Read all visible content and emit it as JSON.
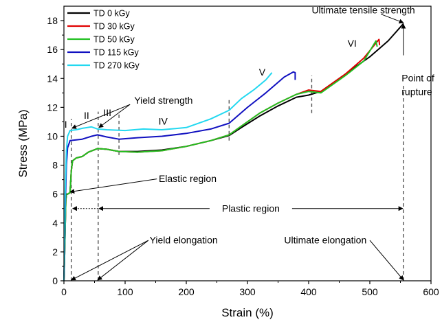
{
  "chart_data": {
    "type": "line",
    "title": "",
    "xlabel": "Strain (%)",
    "ylabel": "Stress (MPa)",
    "xlim": [
      0,
      600
    ],
    "ylim": [
      0,
      19
    ],
    "xticks": [
      0,
      100,
      200,
      300,
      400,
      500,
      600
    ],
    "yticks": [
      0,
      2,
      4,
      6,
      8,
      10,
      12,
      14,
      16,
      18
    ],
    "legend_position": "top-left",
    "grid": false,
    "series": [
      {
        "name": "TD 0 kGy",
        "color": "#000000",
        "points": [
          [
            0,
            0
          ],
          [
            1,
            1.5
          ],
          [
            2,
            3.5
          ],
          [
            3,
            5.5
          ],
          [
            4,
            6.0
          ],
          [
            6,
            6.0
          ],
          [
            10,
            6.1
          ],
          [
            12,
            7.6
          ],
          [
            14,
            8.3
          ],
          [
            20,
            8.5
          ],
          [
            30,
            8.6
          ],
          [
            40,
            8.9
          ],
          [
            55,
            9.15
          ],
          [
            70,
            9.1
          ],
          [
            90,
            8.95
          ],
          [
            120,
            8.95
          ],
          [
            160,
            9.05
          ],
          [
            200,
            9.3
          ],
          [
            240,
            9.7
          ],
          [
            270,
            10.05
          ],
          [
            290,
            10.6
          ],
          [
            320,
            11.4
          ],
          [
            350,
            12.1
          ],
          [
            380,
            12.7
          ],
          [
            400,
            12.85
          ],
          [
            420,
            13.1
          ],
          [
            460,
            14.3
          ],
          [
            500,
            15.5
          ],
          [
            530,
            16.6
          ],
          [
            555,
            17.8
          ]
        ]
      },
      {
        "name": "TD 30 kGy",
        "color": "#e00000",
        "points": [
          [
            0,
            0
          ],
          [
            1,
            1.5
          ],
          [
            2,
            3.5
          ],
          [
            3,
            5.5
          ],
          [
            4,
            6.0
          ],
          [
            6,
            6.0
          ],
          [
            10,
            6.1
          ],
          [
            12,
            7.6
          ],
          [
            14,
            8.3
          ],
          [
            20,
            8.5
          ],
          [
            30,
            8.6
          ],
          [
            40,
            8.9
          ],
          [
            55,
            9.15
          ],
          [
            70,
            9.1
          ],
          [
            90,
            8.95
          ],
          [
            120,
            8.9
          ],
          [
            160,
            9.0
          ],
          [
            200,
            9.3
          ],
          [
            240,
            9.7
          ],
          [
            270,
            10.1
          ],
          [
            290,
            10.7
          ],
          [
            320,
            11.6
          ],
          [
            350,
            12.3
          ],
          [
            380,
            12.9
          ],
          [
            400,
            13.2
          ],
          [
            420,
            13.1
          ],
          [
            460,
            14.3
          ],
          [
            490,
            15.4
          ],
          [
            515,
            16.7
          ],
          [
            516,
            16.3
          ]
        ]
      },
      {
        "name": "TD 50 kGy",
        "color": "#22c022",
        "points": [
          [
            0,
            0
          ],
          [
            1,
            1.5
          ],
          [
            2,
            3.5
          ],
          [
            3,
            5.5
          ],
          [
            4,
            6.0
          ],
          [
            6,
            6.0
          ],
          [
            10,
            6.1
          ],
          [
            12,
            7.6
          ],
          [
            14,
            8.3
          ],
          [
            20,
            8.5
          ],
          [
            30,
            8.6
          ],
          [
            40,
            8.9
          ],
          [
            55,
            9.15
          ],
          [
            70,
            9.1
          ],
          [
            90,
            8.95
          ],
          [
            120,
            8.9
          ],
          [
            160,
            9.0
          ],
          [
            200,
            9.3
          ],
          [
            240,
            9.7
          ],
          [
            270,
            10.1
          ],
          [
            290,
            10.7
          ],
          [
            320,
            11.6
          ],
          [
            350,
            12.3
          ],
          [
            380,
            12.9
          ],
          [
            400,
            13.1
          ],
          [
            420,
            13.0
          ],
          [
            460,
            14.2
          ],
          [
            490,
            15.2
          ],
          [
            510,
            16.6
          ],
          [
            512,
            16.2
          ]
        ]
      },
      {
        "name": "TD 115 kGy",
        "color": "#1010c0",
        "points": [
          [
            0,
            0
          ],
          [
            1,
            2.0
          ],
          [
            2,
            5.0
          ],
          [
            4,
            8.0
          ],
          [
            6,
            9.2
          ],
          [
            10,
            9.7
          ],
          [
            20,
            9.75
          ],
          [
            30,
            9.8
          ],
          [
            45,
            10.0
          ],
          [
            55,
            10.1
          ],
          [
            70,
            9.95
          ],
          [
            90,
            9.8
          ],
          [
            120,
            9.9
          ],
          [
            160,
            10.0
          ],
          [
            200,
            10.2
          ],
          [
            240,
            10.5
          ],
          [
            270,
            10.9
          ],
          [
            300,
            12.0
          ],
          [
            330,
            13.0
          ],
          [
            360,
            14.1
          ],
          [
            375,
            14.45
          ],
          [
            378,
            14.4
          ],
          [
            378,
            13.9
          ]
        ]
      },
      {
        "name": "TD 270 kGy",
        "color": "#22d8f0",
        "points": [
          [
            0,
            0
          ],
          [
            1,
            2.5
          ],
          [
            2,
            6.0
          ],
          [
            4,
            9.0
          ],
          [
            6,
            10.0
          ],
          [
            10,
            10.4
          ],
          [
            20,
            10.45
          ],
          [
            30,
            10.55
          ],
          [
            45,
            10.65
          ],
          [
            55,
            10.5
          ],
          [
            70,
            10.45
          ],
          [
            100,
            10.4
          ],
          [
            130,
            10.5
          ],
          [
            160,
            10.45
          ],
          [
            200,
            10.6
          ],
          [
            240,
            11.2
          ],
          [
            270,
            11.8
          ],
          [
            290,
            12.6
          ],
          [
            310,
            13.2
          ],
          [
            330,
            13.9
          ],
          [
            340,
            14.4
          ]
        ]
      }
    ],
    "region_labels": [
      {
        "label": "I",
        "x": 3,
        "y": 10.6
      },
      {
        "label": "II",
        "x": 37,
        "y": 11.2
      },
      {
        "label": "III",
        "x": 71,
        "y": 11.4
      },
      {
        "label": "IV",
        "x": 162,
        "y": 10.8
      },
      {
        "label": "V",
        "x": 324,
        "y": 14.2
      },
      {
        "label": "VI",
        "x": 471,
        "y": 16.2
      }
    ],
    "dashed_lines": [
      {
        "x": 12,
        "y_from": 0,
        "y_to": 11.2
      },
      {
        "x": 56,
        "y_from": 0,
        "y_to": 11.7
      },
      {
        "x": 90,
        "y_from": 8.7,
        "y_to": 11.7
      },
      {
        "x": 270,
        "y_from": 9.7,
        "y_to": 12.6
      },
      {
        "x": 405,
        "y_from": 11.6,
        "y_to": 14.2
      },
      {
        "x": 555,
        "y_from": 0,
        "y_to": 13.5
      }
    ],
    "annotations": [
      {
        "text": "Ultimate tensile strength",
        "text_x": 405,
        "text_y": 18.5,
        "arrows": [
          {
            "from": [
              518,
              18.45
            ],
            "to": [
              555,
              17.85
            ]
          }
        ]
      },
      {
        "text": "Point of",
        "text_x": 552,
        "text_y": 13.8,
        "arrows": [
          {
            "from": [
              555,
              15.6
            ],
            "to": [
              555,
              17.75
            ]
          }
        ]
      },
      {
        "text": "rupture",
        "text_x": 552,
        "text_y": 12.85,
        "arrows": []
      },
      {
        "text": "Yield strength",
        "text_x": 115,
        "text_y": 12.25,
        "arrows": [
          {
            "from": [
              108,
              12.2
            ],
            "to": [
              13,
              10.55
            ]
          },
          {
            "from": [
              108,
              12.2
            ],
            "to": [
              57,
              10.6
            ]
          }
        ]
      },
      {
        "text": "Elastic region",
        "text_x": 155,
        "text_y": 6.85,
        "arrows": [
          {
            "from": [
              152,
              7.05
            ],
            "to": [
              10,
              6.15
            ]
          }
        ]
      },
      {
        "text": "Yield elongation",
        "text_x": 140,
        "text_y": 2.6,
        "arrows": [
          {
            "from": [
              138,
              2.8
            ],
            "to": [
              12,
              0.05
            ]
          },
          {
            "from": [
              138,
              2.8
            ],
            "to": [
              55,
              0.05
            ]
          }
        ]
      },
      {
        "text": "Ultimate elongation",
        "text_x": 360,
        "text_y": 2.6,
        "arrows": [
          {
            "from": [
              500,
              2.8
            ],
            "to": [
              555,
              0.05
            ]
          }
        ]
      }
    ],
    "plastic_region": {
      "text": "Plastic region",
      "y": 5.0,
      "x_start": 12,
      "x_split": 56,
      "x_end": 555
    }
  }
}
